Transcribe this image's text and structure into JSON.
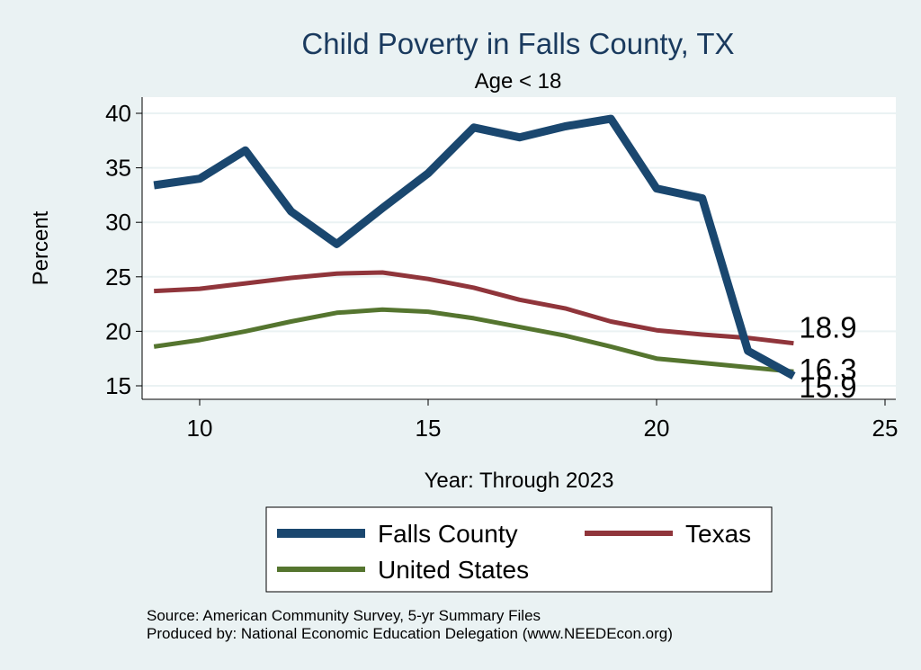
{
  "chart_data": {
    "type": "line",
    "title": "Child Poverty in Falls County, TX",
    "subtitle": "Age < 18",
    "xlabel": "Year: Through 2023",
    "ylabel": "Percent",
    "xlim": [
      9,
      25
    ],
    "ylim": [
      15,
      40
    ],
    "xticks": [
      10,
      15,
      20,
      25
    ],
    "yticks": [
      15,
      20,
      25,
      30,
      35,
      40
    ],
    "grid": true,
    "legend_position": "bottom",
    "x": [
      9,
      10,
      11,
      12,
      13,
      14,
      15,
      16,
      17,
      18,
      19,
      20,
      21,
      22,
      23
    ],
    "series": [
      {
        "name": "Falls County",
        "color": "#1a476f",
        "width": 9,
        "values": [
          33.4,
          34.0,
          36.6,
          31.0,
          28.0,
          31.3,
          34.5,
          38.7,
          37.8,
          38.8,
          39.5,
          33.1,
          32.2,
          18.2,
          15.9
        ],
        "end_label": "15.9"
      },
      {
        "name": "Texas",
        "color": "#90353b",
        "width": 5,
        "values": [
          23.7,
          23.9,
          24.4,
          24.9,
          25.3,
          25.4,
          24.8,
          24.0,
          22.9,
          22.1,
          20.9,
          20.1,
          19.7,
          19.4,
          18.9
        ],
        "end_label": "18.9"
      },
      {
        "name": "United States",
        "color": "#55752f",
        "width": 5,
        "values": [
          18.6,
          19.2,
          20.0,
          20.9,
          21.7,
          22.0,
          21.8,
          21.2,
          20.4,
          19.6,
          18.6,
          17.5,
          17.1,
          16.7,
          16.3
        ],
        "end_label": "16.3"
      }
    ],
    "notes": [
      "Source: American Community Survey, 5-yr Summary Files",
      "Produced by: National Economic Education Delegation (www.NEEDEcon.org)"
    ]
  }
}
